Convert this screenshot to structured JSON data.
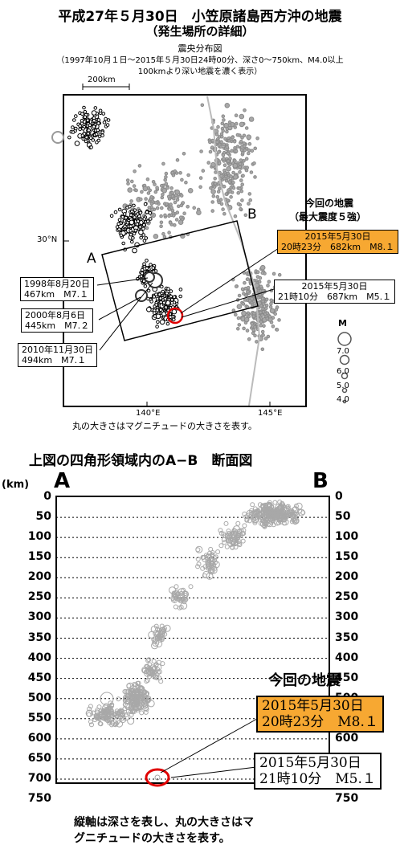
{
  "header": {
    "title": "平成27年５月30日　小笠原諸島西方沖の地震",
    "subtitle": "（発生場所の詳細）",
    "map_label": "震央分布図",
    "range": "（1997年10月１日～2015年５月30日24時00分、深さ0～750km、M4.0以上",
    "range_note": "100kmより深い地震を濃く表示）"
  },
  "map": {
    "scale_label": "200km",
    "lat_label": "30°N",
    "lon_labels": [
      "140°E",
      "145°E"
    ],
    "point_a": "A",
    "point_b": "B",
    "magnitude_legend": {
      "title": "M",
      "values": [
        "7.0",
        "6.0",
        "5.0",
        "4.0"
      ]
    },
    "caption": "丸の大きさはマグニチュードの大きさを表す。",
    "current_title": "今回の地震",
    "current_subtitle": "（最大震度５強）",
    "events": [
      {
        "date": "2015年5月30日",
        "detail": "20時23分　682km　M8.１",
        "highlight": true
      },
      {
        "date": "2015年5月30日",
        "detail": "21時10分　687km　M5.１",
        "highlight": false
      },
      {
        "date": "1998年8月20日",
        "detail": "467km　M7.１",
        "highlight": false
      },
      {
        "date": "2000年8月6日",
        "detail": "445km　M7.２",
        "highlight": false
      },
      {
        "date": "2010年11月30日",
        "detail": "494km　M7.１",
        "highlight": false
      }
    ]
  },
  "section": {
    "title": "上図の四角形領域内のA−B　断面図",
    "unit": "(km)",
    "point_a": "A",
    "point_b": "B",
    "depth_ticks": [
      "0",
      "50",
      "100",
      "150",
      "200",
      "250",
      "300",
      "350",
      "400",
      "450",
      "500",
      "550",
      "600",
      "650",
      "700",
      "750"
    ],
    "current_title": "今回の地震",
    "events": [
      {
        "date": "2015年5月30日",
        "detail": "20時23分　M8.１",
        "highlight": true
      },
      {
        "date": "2015年5月30日",
        "detail": "21時10分　M5.１",
        "highlight": false
      }
    ],
    "caption_line1": "縦軸は深さを表し、丸の大きさはマ",
    "caption_line2": "グニチュードの大きさを表す。"
  },
  "colors": {
    "deep": "#000000",
    "shallow": "#a8a8a8",
    "highlight_box": "#f7a832",
    "circle": "#e00000"
  }
}
